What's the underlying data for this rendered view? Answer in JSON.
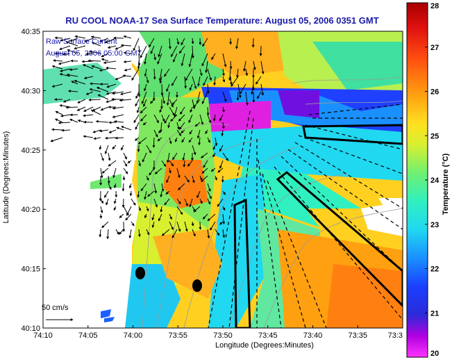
{
  "title": "RU COOL  NOAA-17  Sea Surface Temperature:  August 05, 2006 0351 GMT",
  "legend": {
    "line1": "Raw Surface Current",
    "line2": "August 05, 2006 05:00 GMT",
    "scale_label": "50 cm/s"
  },
  "axes": {
    "xlabel": "Longitude (Degrees:Minutes)",
    "ylabel": "Latitude (Degrees:Minutes)",
    "xticks": [
      "74:10",
      "74:05",
      "74:00",
      "73:55",
      "73:50",
      "73:45",
      "73:40",
      "73:35",
      "73:3"
    ],
    "yticks": [
      "40:35",
      "40:30",
      "40:25",
      "40:20",
      "40:15",
      "40:10"
    ]
  },
  "colorbar": {
    "label": "Temperature (°C)",
    "ticks": [
      "28",
      "27",
      "26",
      "25",
      "24",
      "23",
      "22",
      "21",
      "20"
    ],
    "min": 20,
    "max": 28
  },
  "colors": {
    "title": "#1a1aa8",
    "land": "#ffffff"
  }
}
